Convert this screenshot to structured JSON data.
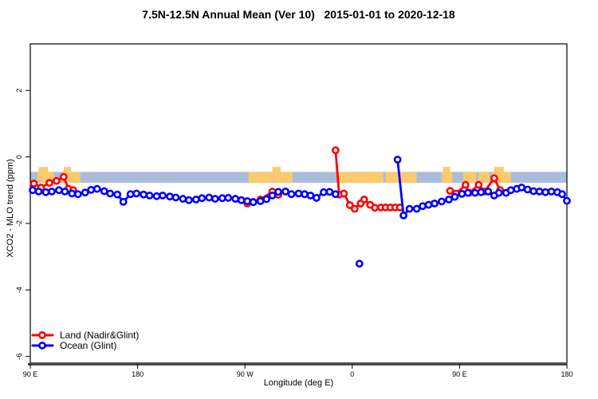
{
  "title": "7.5N-12.5N Annual Mean (Ver 10)   2015-01-01 to 2020-12-18",
  "chart_data": {
    "type": "line",
    "xlabel": "Longitude (deg E)",
    "ylabel": "XCO2 - MLO trend (ppm)",
    "xlim": [
      90,
      540
    ],
    "ylim": [
      -6.2,
      3.4
    ],
    "grid": "off",
    "x_ticks": [
      {
        "x": 90,
        "label": "90 E"
      },
      {
        "x": 180,
        "label": "180"
      },
      {
        "x": 270,
        "label": "90 W"
      },
      {
        "x": 360,
        "label": "0"
      },
      {
        "x": 450,
        "label": "90 E"
      },
      {
        "x": 540,
        "label": "180"
      }
    ],
    "y_ticks": [
      {
        "y": 2,
        "label": "2"
      },
      {
        "y": 0,
        "label": "0"
      },
      {
        "y": -2,
        "label": "-2"
      },
      {
        "y": -4,
        "label": "-4"
      },
      {
        "y": -6,
        "label": "-6"
      }
    ],
    "ocean_band": {
      "from": -0.45,
      "to": -0.78,
      "color": "#a9bddb",
      "meaning": "ocean strip of 7.5N-12.5N latitude map"
    },
    "land_band_color": "#fbca6e",
    "land_segments": [
      [
        96,
        110
      ],
      [
        117,
        132
      ],
      [
        273,
        310
      ],
      [
        347,
        386
      ],
      [
        388,
        414
      ],
      [
        435,
        444
      ],
      [
        453,
        464
      ],
      [
        466,
        475
      ],
      [
        477,
        493
      ]
    ],
    "land_bumps": [
      [
        97,
        105
      ],
      [
        118,
        124
      ],
      [
        293,
        300
      ],
      [
        436,
        442
      ],
      [
        479,
        487
      ]
    ],
    "legend": {
      "position": "bottom-left"
    },
    "series": [
      {
        "name": "Land (Nadir&Glint)",
        "color": "#ff0000",
        "segments": [
          [
            [
              93,
              -0.8
            ],
            [
              99,
              -0.92
            ],
            [
              106,
              -0.78
            ],
            [
              112,
              -0.72
            ],
            [
              118,
              -0.6
            ],
            [
              122,
              -0.96
            ],
            [
              126,
              -1.0
            ]
          ],
          [
            [
              272,
              -1.4
            ],
            [
              277,
              -1.35
            ],
            [
              283,
              -1.28
            ],
            [
              293,
              -1.04
            ],
            [
              298,
              -1.14
            ]
          ],
          [
            [
              346,
              0.2
            ],
            [
              349,
              -1.13
            ],
            [
              353,
              -1.1
            ],
            [
              358,
              -1.45
            ],
            [
              362,
              -1.56
            ],
            [
              367,
              -1.4
            ],
            [
              370,
              -1.28
            ],
            [
              375,
              -1.44
            ],
            [
              379,
              -1.53
            ],
            [
              384,
              -1.52
            ],
            [
              388,
              -1.52
            ],
            [
              392,
              -1.52
            ],
            [
              396,
              -1.52
            ],
            [
              400,
              -1.52
            ]
          ],
          [
            [
              442,
              -1.02
            ],
            [
              447,
              -1.1
            ],
            [
              455,
              -0.84
            ],
            [
              458,
              -1.08
            ],
            [
              466,
              -0.84
            ],
            [
              471,
              -1.04
            ],
            [
              479,
              -0.64
            ],
            [
              484,
              -1.0
            ]
          ]
        ],
        "isolated_points": []
      },
      {
        "name": "Ocean (Glint)",
        "color": "#0000ff",
        "segments": [
          [
            [
              92,
              -1.0
            ],
            [
              97,
              -1.04
            ],
            [
              103,
              -1.06
            ],
            [
              108,
              -1.04
            ],
            [
              114,
              -1.0
            ],
            [
              119,
              -1.04
            ],
            [
              125,
              -1.1
            ],
            [
              130,
              -1.12
            ],
            [
              136,
              -1.07
            ],
            [
              141,
              -0.99
            ],
            [
              146,
              -0.96
            ],
            [
              152,
              -1.03
            ],
            [
              157,
              -1.1
            ],
            [
              163,
              -1.13
            ],
            [
              168,
              -1.35
            ],
            [
              174,
              -1.12
            ],
            [
              179,
              -1.1
            ],
            [
              185,
              -1.13
            ],
            [
              190,
              -1.16
            ],
            [
              196,
              -1.18
            ],
            [
              201,
              -1.16
            ],
            [
              207,
              -1.19
            ],
            [
              212,
              -1.22
            ],
            [
              218,
              -1.26
            ],
            [
              223,
              -1.3
            ],
            [
              229,
              -1.28
            ],
            [
              234,
              -1.24
            ],
            [
              240,
              -1.22
            ],
            [
              245,
              -1.26
            ],
            [
              251,
              -1.24
            ],
            [
              256,
              -1.23
            ],
            [
              262,
              -1.26
            ],
            [
              267,
              -1.3
            ],
            [
              272,
              -1.33
            ],
            [
              277,
              -1.36
            ],
            [
              283,
              -1.33
            ],
            [
              288,
              -1.27
            ],
            [
              293,
              -1.16
            ],
            [
              298,
              -1.05
            ],
            [
              304,
              -1.04
            ],
            [
              309,
              -1.12
            ],
            [
              315,
              -1.1
            ],
            [
              320,
              -1.12
            ],
            [
              325,
              -1.16
            ],
            [
              330,
              -1.23
            ],
            [
              336,
              -1.06
            ],
            [
              341,
              -1.05
            ],
            [
              346,
              -1.12
            ]
          ],
          [
            [
              398,
              -0.08
            ],
            [
              403,
              -1.76
            ],
            [
              408,
              -1.56
            ],
            [
              414,
              -1.56
            ],
            [
              419,
              -1.48
            ],
            [
              424,
              -1.44
            ],
            [
              429,
              -1.4
            ],
            [
              435,
              -1.34
            ],
            [
              441,
              -1.28
            ],
            [
              446,
              -1.2
            ],
            [
              452,
              -1.11
            ],
            [
              457,
              -1.08
            ],
            [
              463,
              -1.08
            ],
            [
              468,
              -1.06
            ],
            [
              474,
              -1.04
            ],
            [
              479,
              -1.16
            ],
            [
              483,
              -1.08
            ],
            [
              489,
              -1.08
            ],
            [
              493,
              -1.0
            ],
            [
              498,
              -0.96
            ],
            [
              502,
              -0.92
            ],
            [
              507,
              -0.98
            ],
            [
              512,
              -1.03
            ],
            [
              517,
              -1.04
            ],
            [
              522,
              -1.06
            ],
            [
              527,
              -1.04
            ],
            [
              532,
              -1.06
            ],
            [
              536,
              -1.12
            ],
            [
              540,
              -1.32
            ]
          ]
        ],
        "isolated_points": [
          [
            366,
            -3.21
          ]
        ]
      }
    ]
  }
}
